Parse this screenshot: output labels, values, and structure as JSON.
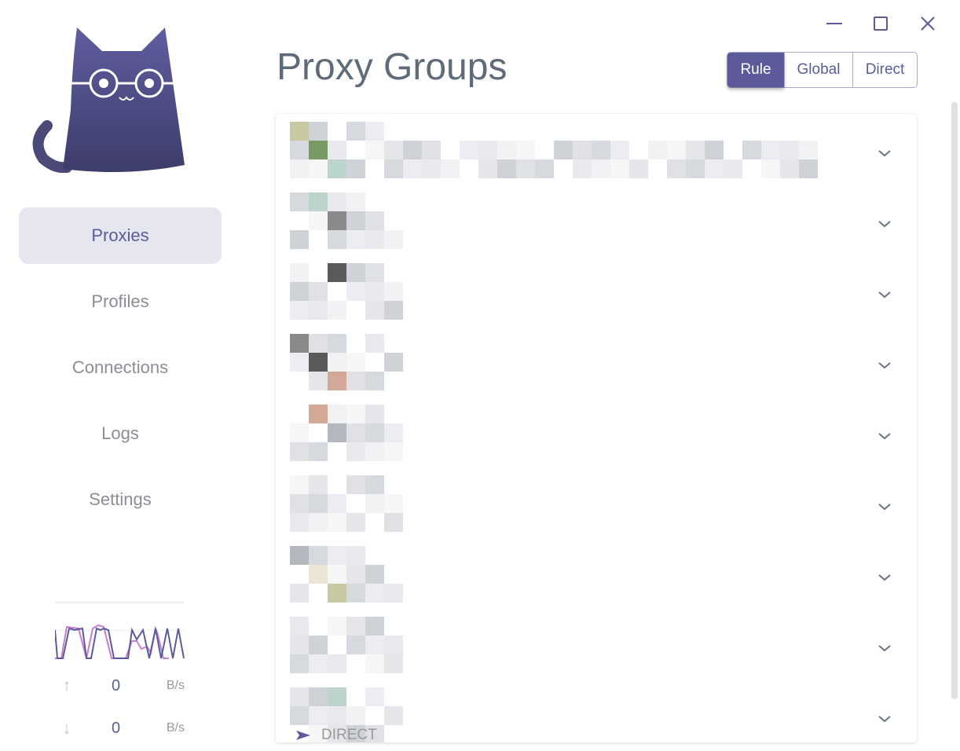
{
  "nav": {
    "items": [
      {
        "label": "Proxies",
        "active": true
      },
      {
        "label": "Profiles"
      },
      {
        "label": "Connections"
      },
      {
        "label": "Logs"
      },
      {
        "label": "Settings"
      }
    ]
  },
  "traffic": {
    "upload_value": "0",
    "upload_unit": "B/s",
    "download_value": "0",
    "download_unit": "B/s",
    "upload_color": "#c77dd0",
    "download_color": "#5b5b9c"
  },
  "header": {
    "title": "Proxy Groups"
  },
  "modes": [
    {
      "label": "Rule",
      "active": true
    },
    {
      "label": "Global"
    },
    {
      "label": "Direct"
    }
  ],
  "groups": {
    "count_visible": 9,
    "last_selected": "DIRECT"
  },
  "colors": {
    "accent": "#5b5b9c",
    "title": "#5f6b7a"
  }
}
